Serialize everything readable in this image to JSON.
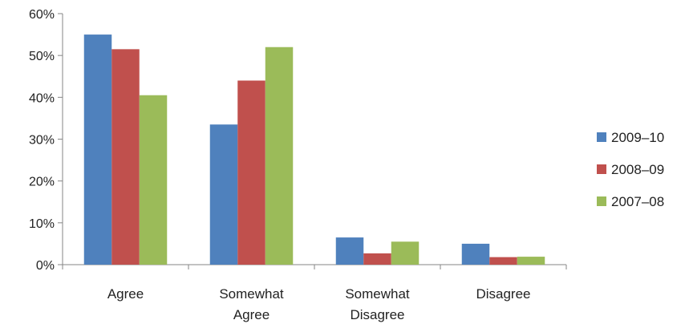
{
  "chart_data": {
    "type": "bar",
    "title": "",
    "xlabel": "",
    "ylabel": "",
    "categories": [
      [
        "Agree"
      ],
      [
        "Somewhat",
        "Agree"
      ],
      [
        "Somewhat",
        "Disagree"
      ],
      [
        "Disagree"
      ]
    ],
    "series": [
      {
        "name": "2009–10",
        "color": "#4F81BD",
        "values": [
          0.55,
          0.335,
          0.065,
          0.05
        ]
      },
      {
        "name": "2008–09",
        "color": "#C0504D",
        "values": [
          0.515,
          0.44,
          0.027,
          0.018
        ]
      },
      {
        "name": "2007–08",
        "color": "#9BBB59",
        "values": [
          0.405,
          0.52,
          0.055,
          0.019
        ]
      }
    ],
    "ylim": [
      0,
      0.6
    ],
    "yticks": [
      0,
      0.1,
      0.2,
      0.3,
      0.4,
      0.5,
      0.6
    ],
    "ytick_labels": [
      "0%",
      "10%",
      "20%",
      "30%",
      "40%",
      "50%",
      "60%"
    ],
    "grid": false,
    "legend_position": "right"
  }
}
